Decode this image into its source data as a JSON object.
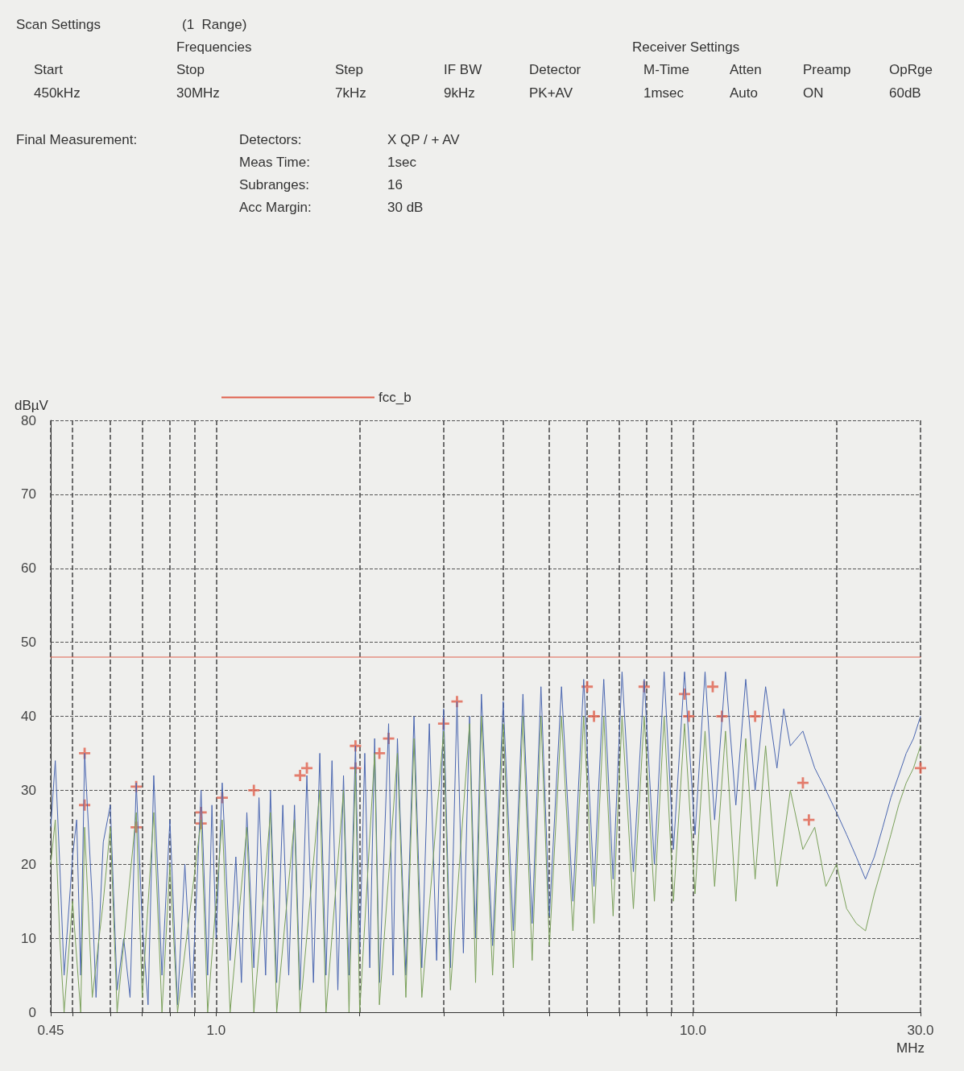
{
  "chart_data": {
    "type": "line",
    "log": "x",
    "xlabel": "MHz",
    "ylabel": "dBµV",
    "annotations": [
      "Scan Settings",
      "(1  Range)",
      "Frequencies",
      "Receiver Settings",
      "Start",
      "Stop",
      "Step",
      "IF BW",
      "Detector",
      "M-Time",
      "Atten",
      "Preamp",
      "OpRge",
      "450kHz",
      "30MHz",
      "7kHz",
      "9kHz",
      "PK+AV",
      "1msec",
      "Auto",
      "ON",
      "60dB",
      "Final Measurement:",
      "Detectors:",
      "X QP / + AV",
      "Meas Time:",
      "1sec",
      "Subranges:",
      "16",
      "Acc Margin:",
      "30 dB"
    ],
    "xlim": [
      0.45,
      30
    ],
    "xticks": [
      0.45,
      {
        "value": 0.5,
        "label": null
      },
      {
        "value": 0.6,
        "label": null
      },
      {
        "value": 0.7,
        "label": null
      },
      {
        "value": 0.8,
        "label": null
      },
      {
        "value": 0.9,
        "label": null
      },
      {
        "value": 1,
        "label": "1.0"
      },
      {
        "value": 2,
        "label": null
      },
      {
        "value": 3,
        "label": null
      },
      {
        "value": 4,
        "label": null
      },
      {
        "value": 5,
        "label": null
      },
      {
        "value": 6,
        "label": null
      },
      {
        "value": 7,
        "label": null
      },
      {
        "value": 8,
        "label": null
      },
      {
        "value": 9,
        "label": null
      },
      {
        "value": 10,
        "label": "10.0"
      },
      {
        "value": 20,
        "label": null
      },
      {
        "value": 30,
        "label": "30.0"
      }
    ],
    "ylim": [
      0,
      80
    ],
    "yticks": [
      0,
      10,
      20,
      30,
      40,
      50,
      60,
      70,
      80
    ],
    "grid": true,
    "legend": "top",
    "line_style": "solid",
    "series": [
      {
        "name": "fcc_b",
        "marker": "none",
        "color": "#e0604c",
        "x": [
          0.45,
          30
        ],
        "values": [
          48,
          48
        ]
      },
      {
        "marker": "none",
        "color": "#4a66b0",
        "x": [
          0.45,
          0.46,
          0.47,
          0.48,
          0.5,
          0.51,
          0.52,
          0.53,
          0.55,
          0.56,
          0.58,
          0.6,
          0.62,
          0.64,
          0.66,
          0.68,
          0.7,
          0.72,
          0.74,
          0.77,
          0.8,
          0.83,
          0.86,
          0.89,
          0.93,
          0.96,
          0.98,
          1.0,
          1.03,
          1.07,
          1.1,
          1.13,
          1.16,
          1.2,
          1.23,
          1.27,
          1.3,
          1.34,
          1.38,
          1.42,
          1.46,
          1.5,
          1.55,
          1.6,
          1.65,
          1.7,
          1.75,
          1.8,
          1.85,
          1.9,
          1.96,
          2.0,
          2.05,
          2.1,
          2.15,
          2.2,
          2.3,
          2.35,
          2.4,
          2.5,
          2.6,
          2.7,
          2.8,
          2.9,
          3.0,
          3.1,
          3.2,
          3.3,
          3.4,
          3.5,
          3.6,
          3.8,
          4.0,
          4.2,
          4.4,
          4.6,
          4.8,
          5.0,
          5.3,
          5.6,
          5.9,
          6.2,
          6.5,
          6.8,
          7.1,
          7.5,
          7.9,
          8.3,
          8.7,
          9.1,
          9.6,
          10.1,
          10.6,
          11.1,
          11.7,
          12.3,
          12.9,
          13.5,
          14.2,
          15,
          15.5,
          16,
          17,
          18,
          19,
          20,
          21,
          22,
          23,
          24,
          25,
          26,
          27,
          28,
          29,
          30
        ],
        "values": [
          25,
          34,
          20,
          5,
          21,
          26,
          5,
          35,
          15,
          2,
          23,
          28,
          3,
          10,
          2,
          31,
          12,
          1,
          32,
          5,
          26,
          1,
          20,
          2,
          30,
          5,
          28,
          10,
          31,
          7,
          21,
          4,
          27,
          6,
          29,
          5,
          30,
          4,
          28,
          5,
          28,
          3,
          32,
          4,
          35,
          5,
          34,
          3,
          32,
          5,
          36,
          8,
          35,
          6,
          37,
          4,
          39,
          5,
          37,
          5,
          40,
          6,
          39,
          7,
          41,
          6,
          42,
          8,
          40,
          10,
          43,
          9,
          42,
          11,
          43,
          12,
          44,
          13,
          44,
          15,
          45,
          17,
          45,
          18,
          46,
          19,
          45,
          20,
          46,
          22,
          46,
          24,
          46,
          26,
          46,
          28,
          45,
          30,
          44,
          33,
          41,
          36,
          38,
          33,
          30,
          27,
          24,
          21,
          18,
          21,
          25,
          29,
          32,
          35,
          37,
          40
        ]
      },
      {
        "marker": "none",
        "color": "#7aa05a",
        "x": [
          0.45,
          0.46,
          0.47,
          0.48,
          0.5,
          0.52,
          0.53,
          0.55,
          0.58,
          0.6,
          0.62,
          0.68,
          0.7,
          0.74,
          0.77,
          0.8,
          0.83,
          0.93,
          0.96,
          1.03,
          1.07,
          1.16,
          1.2,
          1.3,
          1.34,
          1.46,
          1.5,
          1.65,
          1.7,
          1.85,
          1.9,
          1.96,
          2.0,
          2.15,
          2.2,
          2.4,
          2.5,
          2.6,
          2.7,
          3.0,
          3.1,
          3.4,
          3.5,
          3.6,
          3.8,
          4.0,
          4.2,
          4.4,
          4.6,
          4.8,
          5.0,
          5.3,
          5.6,
          5.9,
          6.2,
          6.5,
          6.8,
          7.1,
          7.5,
          7.9,
          8.3,
          8.7,
          9.1,
          9.6,
          10.1,
          10.6,
          11.1,
          11.7,
          12.3,
          12.9,
          13.5,
          14.2,
          15,
          16,
          17,
          18,
          19,
          20,
          21,
          22,
          23,
          24,
          25,
          26,
          27,
          28,
          29,
          30
        ],
        "values": [
          20,
          26,
          10,
          0,
          15,
          0,
          25,
          2,
          15,
          25,
          0,
          27,
          2,
          27,
          0,
          20,
          0,
          26,
          0,
          26,
          0,
          25,
          0,
          27,
          0,
          26,
          0,
          30,
          0,
          30,
          0,
          33,
          0,
          35,
          1,
          35,
          2,
          37,
          2,
          38,
          3,
          39,
          4,
          40,
          5,
          39,
          6,
          40,
          7,
          40,
          9,
          40,
          11,
          40,
          12,
          40,
          13,
          40,
          14,
          40,
          15,
          40,
          15,
          39,
          16,
          38,
          17,
          38,
          15,
          37,
          18,
          36,
          17,
          30,
          22,
          25,
          17,
          20,
          14,
          12,
          11,
          16,
          20,
          24,
          28,
          31,
          33,
          36
        ]
      },
      {
        "type": "scatter",
        "marker": "cross",
        "color": "#e0604c",
        "x": [
          0.53,
          0.68,
          0.93,
          1.03,
          1.2,
          1.55,
          1.96,
          2.3,
          3.2,
          6,
          7.9,
          9.6,
          11,
          17
        ],
        "values": [
          35,
          30.5,
          27,
          29,
          30,
          33,
          36,
          37,
          42,
          44,
          44,
          43,
          44,
          31
        ]
      },
      {
        "type": "scatter",
        "marker": "cross",
        "color": "#e0604c",
        "x": [
          0.53,
          0.68,
          0.93,
          1.5,
          1.96,
          2.2,
          3.0,
          6.2,
          9.8,
          11.5,
          13.5,
          17.5,
          30
        ],
        "values": [
          28,
          25,
          25.5,
          32,
          33,
          35,
          39,
          40,
          40,
          40,
          40,
          26,
          33
        ]
      }
    ]
  }
}
